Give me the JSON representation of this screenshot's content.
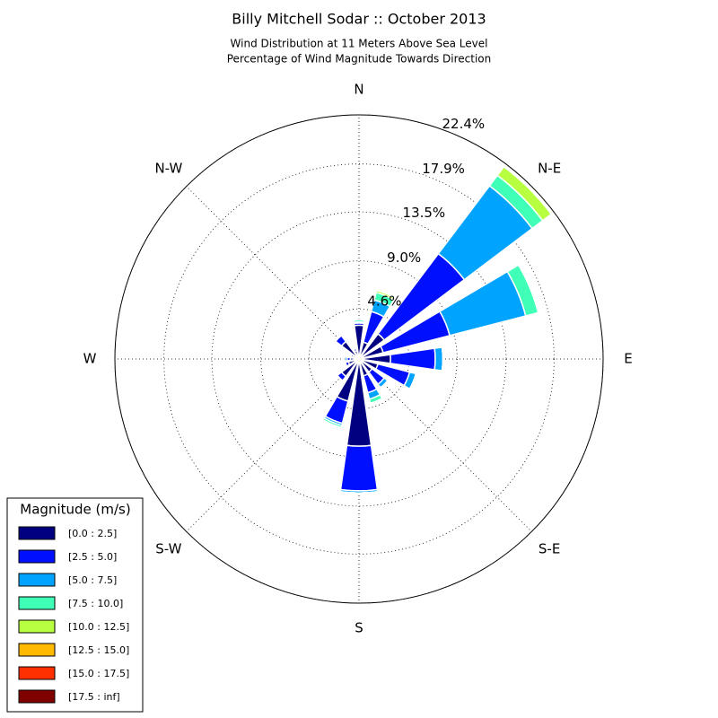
{
  "chart_data": {
    "type": "windrose",
    "title": "Billy Mitchell Sodar :: October 2013",
    "subtitle": [
      "Wind Distribution at 11 Meters Above Sea Level",
      "Percentage of Wind Magnitude Towards Direction"
    ],
    "direction_labels": [
      "N",
      "N-E",
      "E",
      "S-E",
      "S",
      "S-W",
      "W",
      "N-W"
    ],
    "rlim": [
      0,
      22.4
    ],
    "rticks": [
      {
        "value": 4.6,
        "label": "4.6%"
      },
      {
        "value": 9.0,
        "label": "9.0%"
      },
      {
        "value": 13.5,
        "label": "13.5%"
      },
      {
        "value": 17.9,
        "label": "17.9%"
      },
      {
        "value": 22.4,
        "label": "22.4%"
      }
    ],
    "grid": true,
    "legend_title": "Magnitude (m/s)",
    "legend_position": "lower left",
    "series": [
      {
        "name": "[0.0 : 2.5]",
        "color": "#000080",
        "values": [
          3.1,
          1.6,
          2.9,
          2.3,
          2.9,
          1.8,
          1.5,
          1.6,
          8.0,
          4.0,
          2.0,
          1.0,
          0.8,
          0.6,
          2.0,
          0.8
        ]
      },
      {
        "name": "[2.5 : 5.0]",
        "color": "#0010ff",
        "values": [
          0.2,
          2.9,
          9.2,
          6.3,
          4.1,
          3.0,
          1.4,
          1.6,
          4.1,
          2.1,
          0.5,
          0.3,
          0.3,
          0.2,
          0.7,
          0.2
        ]
      },
      {
        "name": "[5.0 : 7.5]",
        "color": "#00a4ff",
        "values": [
          0.1,
          1.1,
          7.8,
          7.2,
          0.7,
          0.6,
          0.4,
          0.6,
          0.2,
          0.2,
          0,
          0,
          0.2,
          0,
          0,
          0
        ]
      },
      {
        "name": "[7.5 : 10.0]",
        "color": "#40ffb7",
        "values": [
          0.2,
          0.7,
          1.2,
          1.2,
          0,
          0,
          0,
          0.4,
          0,
          0.2,
          0,
          0,
          0,
          0,
          0,
          0
        ]
      },
      {
        "name": "[10.0 : 12.5]",
        "color": "#b7ff40",
        "values": [
          0,
          0.2,
          1.0,
          0,
          0,
          0,
          0,
          0,
          0,
          0,
          0,
          0,
          0,
          0,
          0,
          0
        ]
      },
      {
        "name": "[12.5 : 15.0]",
        "color": "#ffb900",
        "values": [
          0,
          0,
          0,
          0,
          0,
          0,
          0,
          0,
          0,
          0,
          0,
          0,
          0,
          0,
          0,
          0
        ]
      },
      {
        "name": "[15.0 : 17.5]",
        "color": "#ff3000",
        "values": [
          0,
          0,
          0,
          0,
          0,
          0,
          0,
          0,
          0,
          0,
          0,
          0,
          0,
          0,
          0,
          0
        ]
      },
      {
        "name": "[17.5 : inf]",
        "color": "#800000",
        "values": [
          0,
          0,
          0,
          0,
          0,
          0,
          0,
          0,
          0,
          0,
          0,
          0,
          0,
          0,
          0,
          0
        ]
      }
    ]
  }
}
